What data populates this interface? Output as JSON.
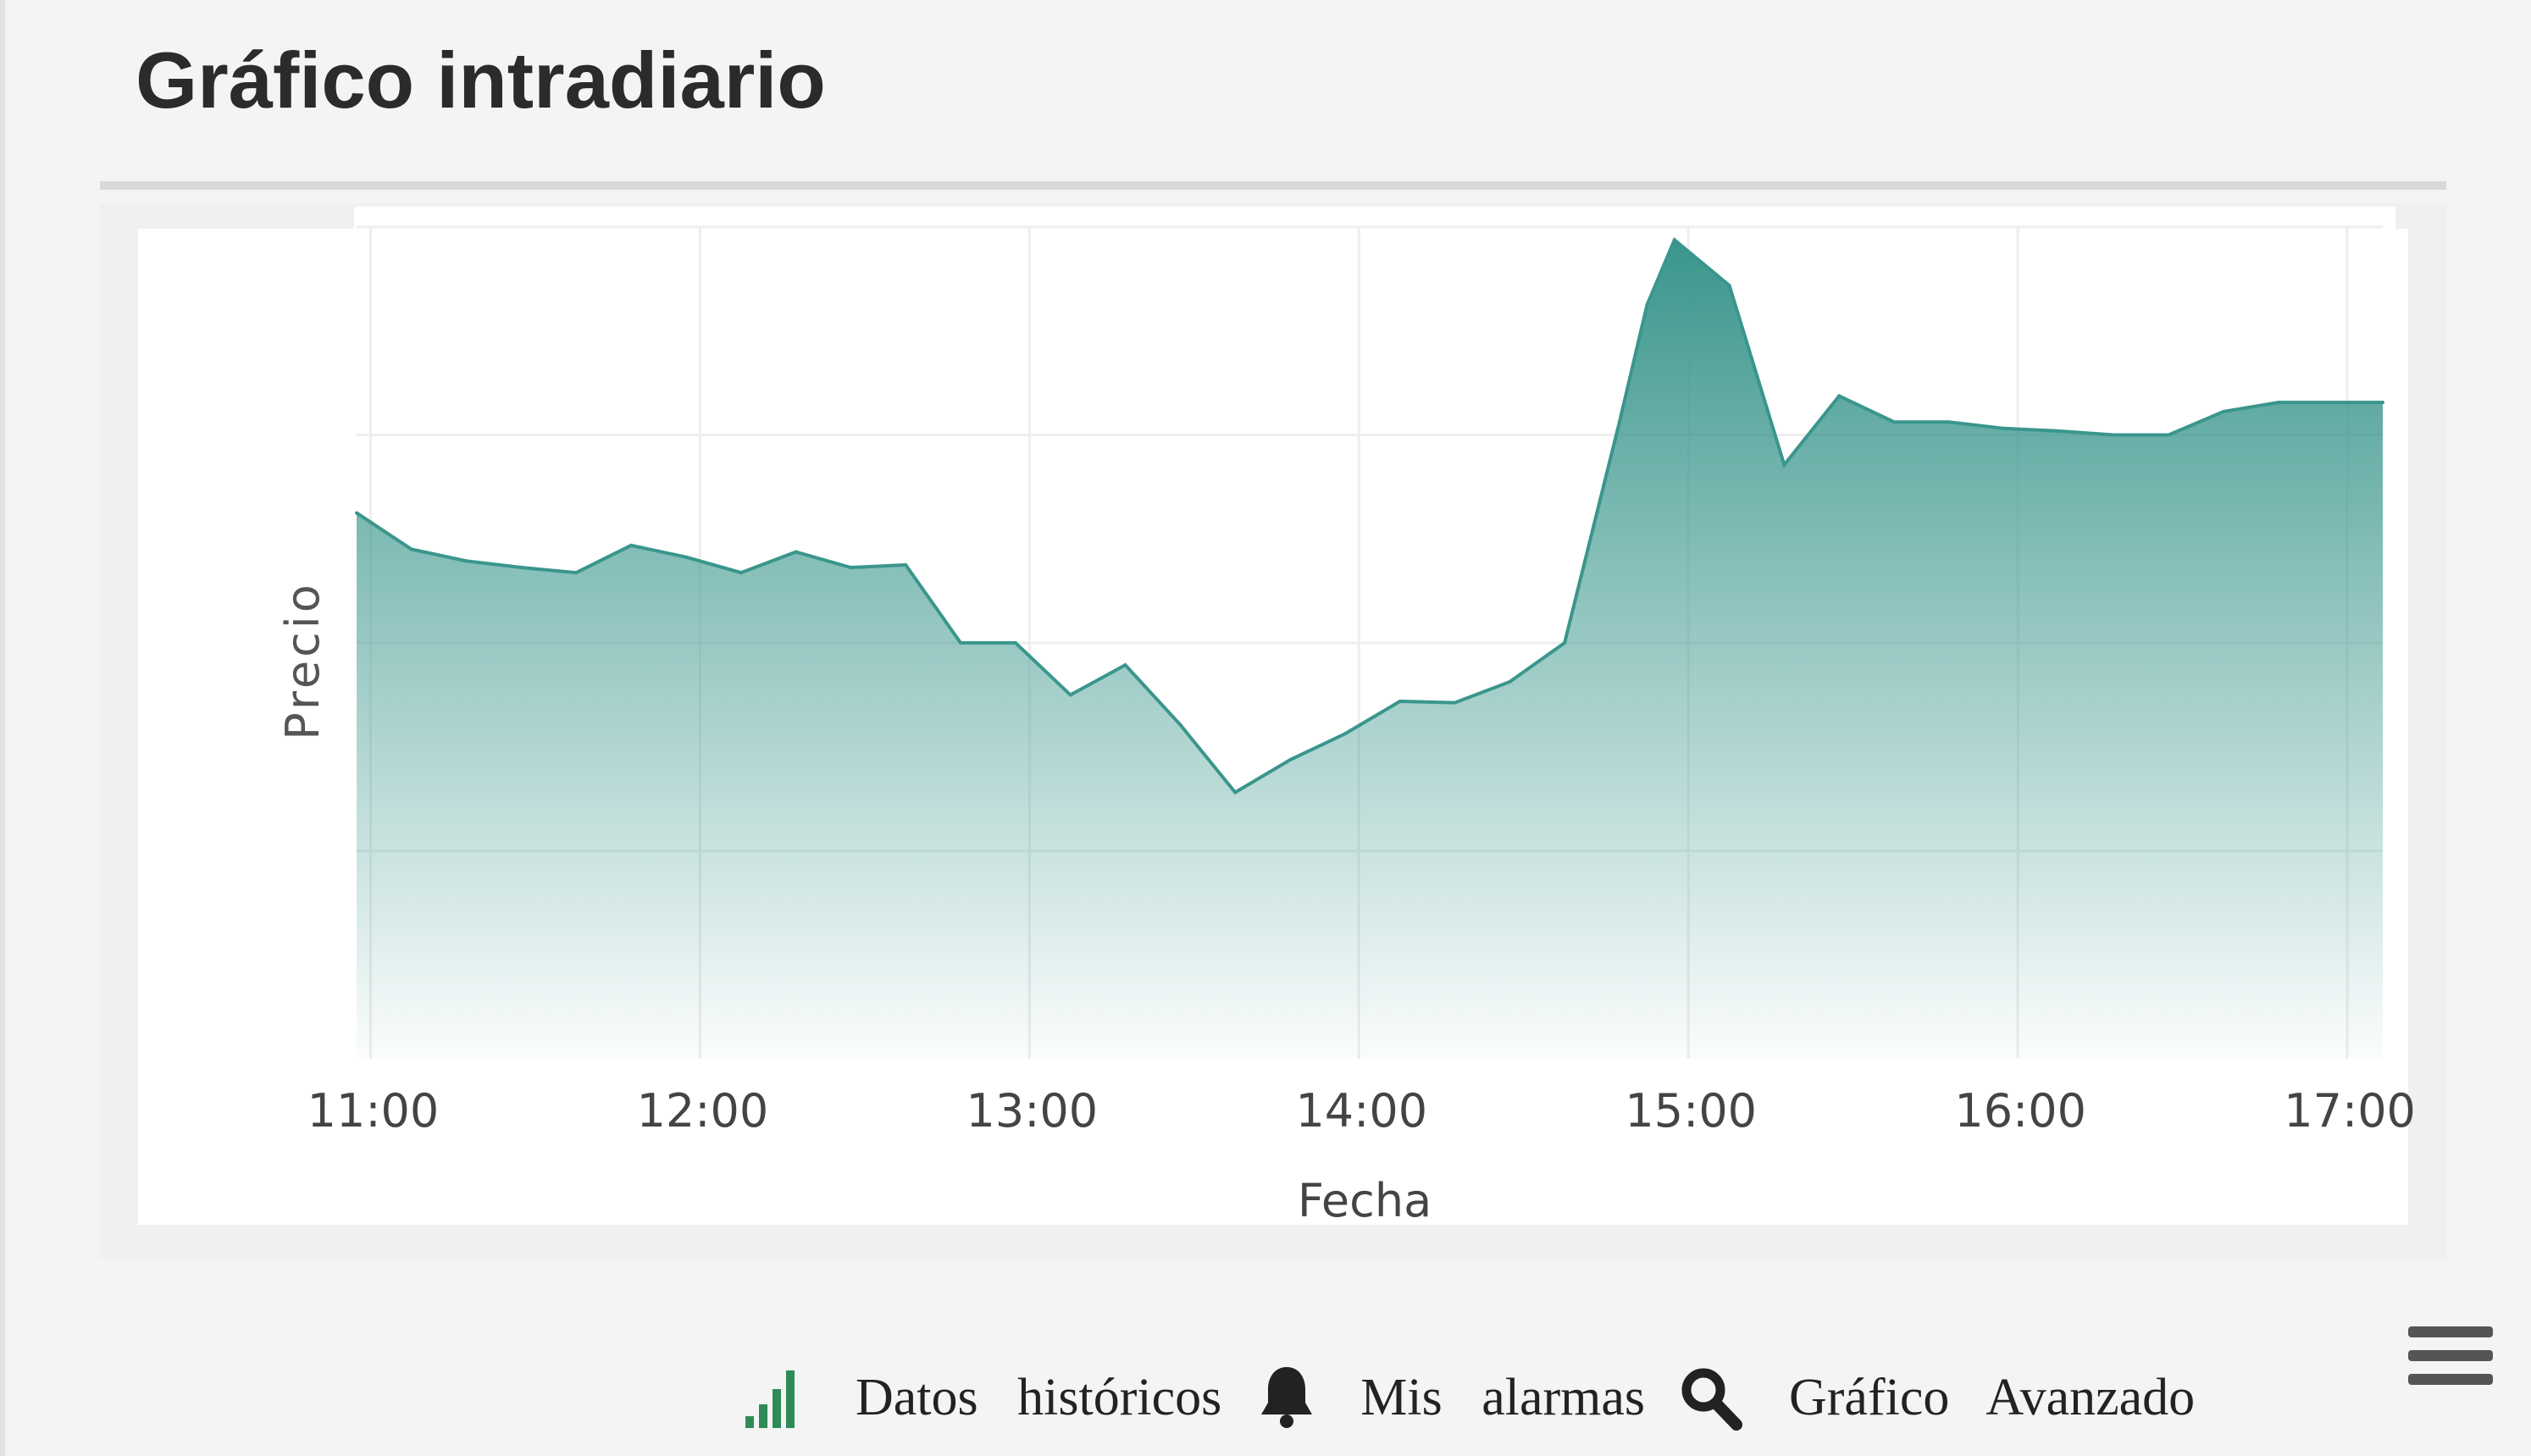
{
  "header": {
    "title": "Gráfico intradiario"
  },
  "chart_data": {
    "type": "area",
    "xlabel": "Fecha",
    "ylabel": "Precio",
    "x_ticks": [
      "11:00",
      "12:00",
      "13:00",
      "14:00",
      "15:00",
      "16:00",
      "17:00"
    ],
    "x_range": [
      "10:57",
      "17:06"
    ],
    "y_range": [
      0,
      6.4
    ],
    "grid": true,
    "series": [
      {
        "color": "#3a968c",
        "x": [
          "10:57",
          "11:07",
          "11:17",
          "11:27",
          "11:37",
          "11:47",
          "11:57",
          "12:07",
          "12:17",
          "12:27",
          "12:37",
          "12:47",
          "12:57",
          "13:07",
          "13:17",
          "13:27",
          "13:37",
          "13:47",
          "13:57",
          "14:07",
          "14:17",
          "14:27",
          "14:37",
          "14:47",
          "14:52",
          "14:57",
          "15:07",
          "15:17",
          "15:27",
          "15:37",
          "15:47",
          "15:57",
          "16:07",
          "16:17",
          "16:27",
          "16:37",
          "16:47",
          "16:57",
          "17:06"
        ],
        "values": [
          4.2,
          3.92,
          3.83,
          3.78,
          3.74,
          3.95,
          3.86,
          3.74,
          3.9,
          3.78,
          3.8,
          3.2,
          3.2,
          2.8,
          3.03,
          2.57,
          2.05,
          2.3,
          2.5,
          2.75,
          2.74,
          2.9,
          3.2,
          4.9,
          5.8,
          6.3,
          5.95,
          4.57,
          5.1,
          4.9,
          4.9,
          4.85,
          4.83,
          4.8,
          4.8,
          4.98,
          5.05,
          5.05,
          5.05
        ]
      }
    ]
  },
  "menu": {
    "icon": "hamburger-menu-icon"
  },
  "footer": {
    "links": [
      {
        "label": "Datos   históricos",
        "icon": "bar-chart-icon",
        "icon_color": "#2e8b57"
      },
      {
        "label": "Mis   alarmas",
        "icon": "bell-icon",
        "icon_color": "#222222"
      },
      {
        "label": "Gráfico   Avanzado",
        "icon": "search-icon",
        "icon_color": "#222222"
      }
    ]
  }
}
